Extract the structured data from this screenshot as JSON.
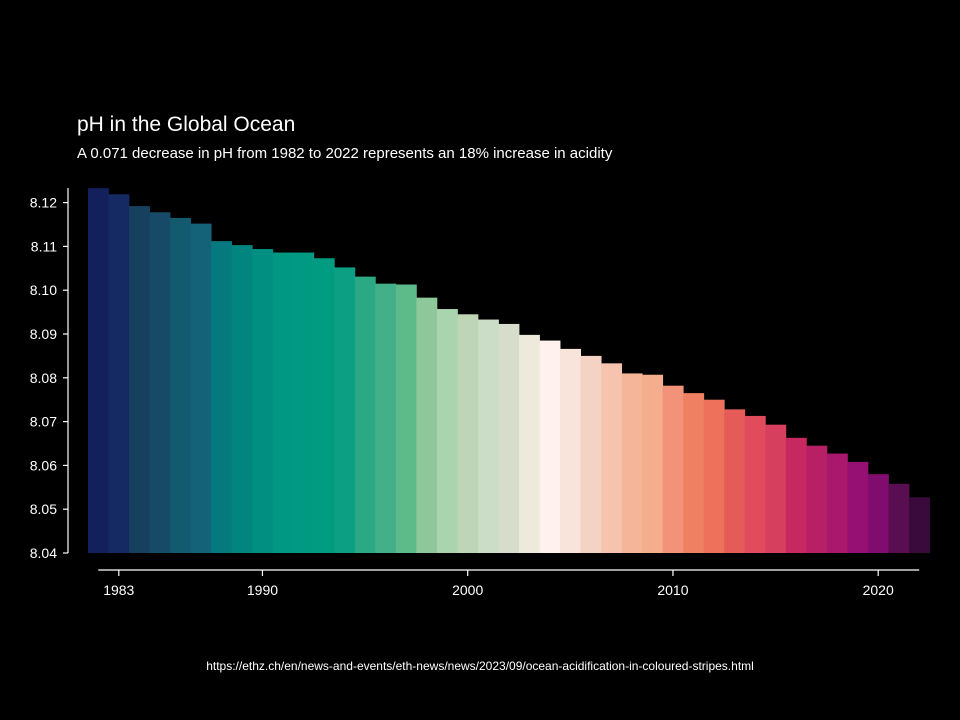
{
  "chart_data": {
    "type": "bar",
    "title": "pH in the Global Ocean",
    "subtitle": "A 0.071 decrease in pH from 1982 to 2022 represents an 18% increase in acidity",
    "xlabel": "",
    "ylabel": "",
    "x": [
      1982,
      1983,
      1984,
      1985,
      1986,
      1987,
      1988,
      1989,
      1990,
      1991,
      1992,
      1993,
      1994,
      1995,
      1996,
      1997,
      1998,
      1999,
      2000,
      2001,
      2002,
      2003,
      2004,
      2005,
      2006,
      2007,
      2008,
      2009,
      2010,
      2011,
      2012,
      2013,
      2014,
      2015,
      2016,
      2017,
      2018,
      2019,
      2020,
      2021,
      2022
    ],
    "values": [
      8.1233,
      8.1219,
      8.1192,
      8.1178,
      8.1165,
      8.1152,
      8.1112,
      8.1103,
      8.1094,
      8.1086,
      8.1086,
      8.1073,
      8.1052,
      8.1031,
      8.1015,
      8.1013,
      8.0983,
      8.0957,
      8.0945,
      8.0933,
      8.0923,
      8.0898,
      8.0885,
      8.0866,
      8.085,
      8.0833,
      8.081,
      8.0807,
      8.0782,
      8.0765,
      8.075,
      8.0728,
      8.0713,
      8.0693,
      8.0663,
      8.0645,
      8.0627,
      8.0608,
      8.058,
      8.0558,
      8.0527
    ],
    "ylim": [
      8.04,
      8.124
    ],
    "yticks": [
      "8.04",
      "8.05",
      "8.06",
      "8.07",
      "8.08",
      "8.09",
      "8.10",
      "8.11",
      "8.12"
    ],
    "xticks": [
      "1983",
      "1990",
      "2000",
      "2010",
      "2020"
    ],
    "colors": [
      "#13205c",
      "#152a62",
      "#17405f",
      "#174a67",
      "#145a6f",
      "#146278",
      "#06797e",
      "#02857e",
      "#008f80",
      "#009783",
      "#009a82",
      "#009c81",
      "#0c9f84",
      "#2ba985",
      "#44b089",
      "#5dbb8a",
      "#8dc79a",
      "#a9d4ae",
      "#bed6b5",
      "#cbddc6",
      "#d6decb",
      "#ede9db",
      "#fff1ee",
      "#f8e4da",
      "#f5d3c4",
      "#f6c3af",
      "#f5b599",
      "#f4ad8d",
      "#f29278",
      "#ef8062",
      "#ed715b",
      "#e55b57",
      "#e14b5c",
      "#d63f5e",
      "#c72860",
      "#b82065",
      "#a9186c",
      "#951072",
      "#7f0c6e",
      "#5a0e52",
      "#3a0a3c"
    ],
    "grid": false,
    "legend": "none"
  },
  "source": {
    "url": "https://ethz.ch/en/news-and-events/eth-news/news/2023/09/ocean-acidification-in-coloured-stripes.html"
  }
}
